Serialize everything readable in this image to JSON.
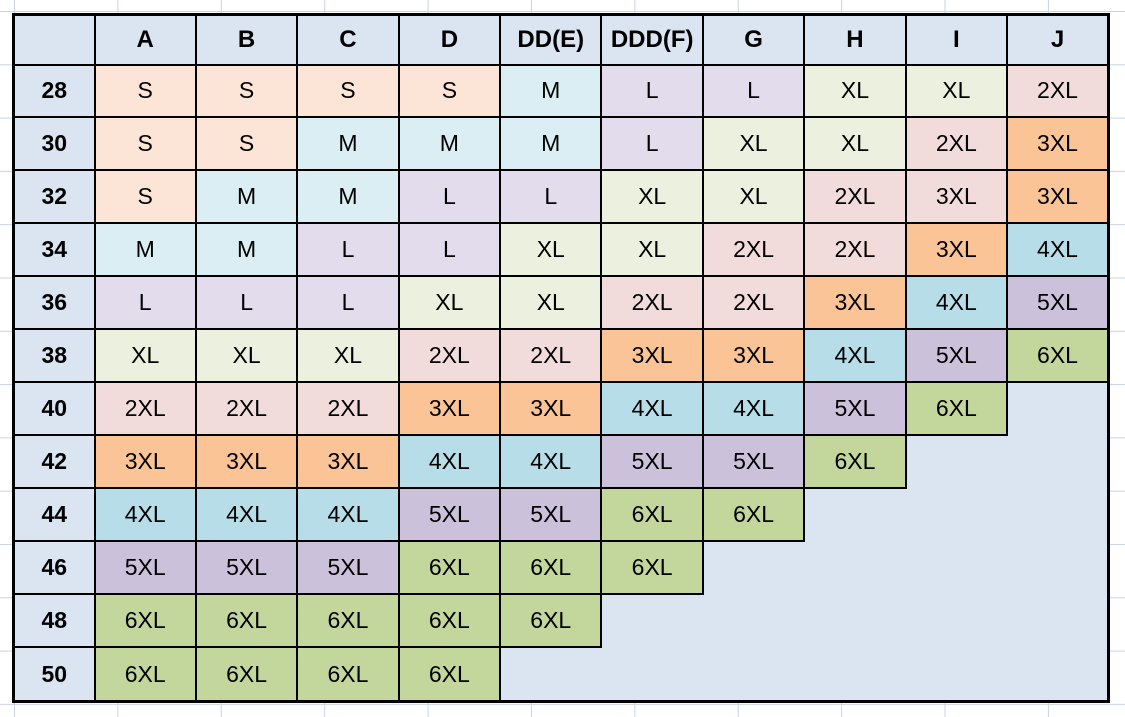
{
  "chart_data": {
    "type": "table",
    "description": "Cup-size by band-size apparel size conversion grid",
    "corner_label": "",
    "columns": [
      "A",
      "B",
      "C",
      "D",
      "DD(E)",
      "DDD(F)",
      "G",
      "H",
      "I",
      "J"
    ],
    "rows": [
      {
        "label": "28",
        "values": [
          "S",
          "S",
          "S",
          "S",
          "M",
          "L",
          "L",
          "XL",
          "XL",
          "2XL"
        ]
      },
      {
        "label": "30",
        "values": [
          "S",
          "S",
          "M",
          "M",
          "M",
          "L",
          "XL",
          "XL",
          "2XL",
          "3XL"
        ]
      },
      {
        "label": "32",
        "values": [
          "S",
          "M",
          "M",
          "L",
          "L",
          "XL",
          "XL",
          "2XL",
          "3XL",
          "3XL"
        ]
      },
      {
        "label": "34",
        "values": [
          "M",
          "M",
          "L",
          "L",
          "XL",
          "XL",
          "2XL",
          "2XL",
          "3XL",
          "4XL"
        ]
      },
      {
        "label": "36",
        "values": [
          "L",
          "L",
          "L",
          "XL",
          "XL",
          "2XL",
          "2XL",
          "3XL",
          "4XL",
          "5XL"
        ]
      },
      {
        "label": "38",
        "values": [
          "XL",
          "XL",
          "XL",
          "2XL",
          "2XL",
          "3XL",
          "3XL",
          "4XL",
          "5XL",
          "6XL"
        ]
      },
      {
        "label": "40",
        "values": [
          "2XL",
          "2XL",
          "2XL",
          "3XL",
          "3XL",
          "4XL",
          "4XL",
          "5XL",
          "6XL",
          ""
        ]
      },
      {
        "label": "42",
        "values": [
          "3XL",
          "3XL",
          "3XL",
          "4XL",
          "4XL",
          "5XL",
          "5XL",
          "6XL",
          "",
          ""
        ]
      },
      {
        "label": "44",
        "values": [
          "4XL",
          "4XL",
          "4XL",
          "5XL",
          "5XL",
          "6XL",
          "6XL",
          "",
          "",
          ""
        ]
      },
      {
        "label": "46",
        "values": [
          "5XL",
          "5XL",
          "5XL",
          "6XL",
          "6XL",
          "6XL",
          "",
          "",
          "",
          ""
        ]
      },
      {
        "label": "48",
        "values": [
          "6XL",
          "6XL",
          "6XL",
          "6XL",
          "6XL",
          "",
          "",
          "",
          "",
          ""
        ]
      },
      {
        "label": "50",
        "values": [
          "6XL",
          "6XL",
          "6XL",
          "6XL",
          "",
          "",
          "",
          "",
          "",
          ""
        ]
      }
    ],
    "cell_fill_by_value": {
      "S": "#fce5d6",
      "M": "#daeef3",
      "L": "#e2dcec",
      "XL": "#ebf1de",
      "2XL": "#f2dcdb",
      "3XL": "#fbc496",
      "4XL": "#b7dee8",
      "5XL": "#ccc1da",
      "6XL": "#c3d69b"
    },
    "header_fill": "#dbe5f1",
    "row_label_fill": "#dbe5f1",
    "empty_fill": "#dbe5f1",
    "border_color": "#000000",
    "gridline_color": "#c9d4e2",
    "fill_overrides": [
      {
        "row": "32",
        "column": "I",
        "use_fill_of": "2XL"
      }
    ]
  }
}
